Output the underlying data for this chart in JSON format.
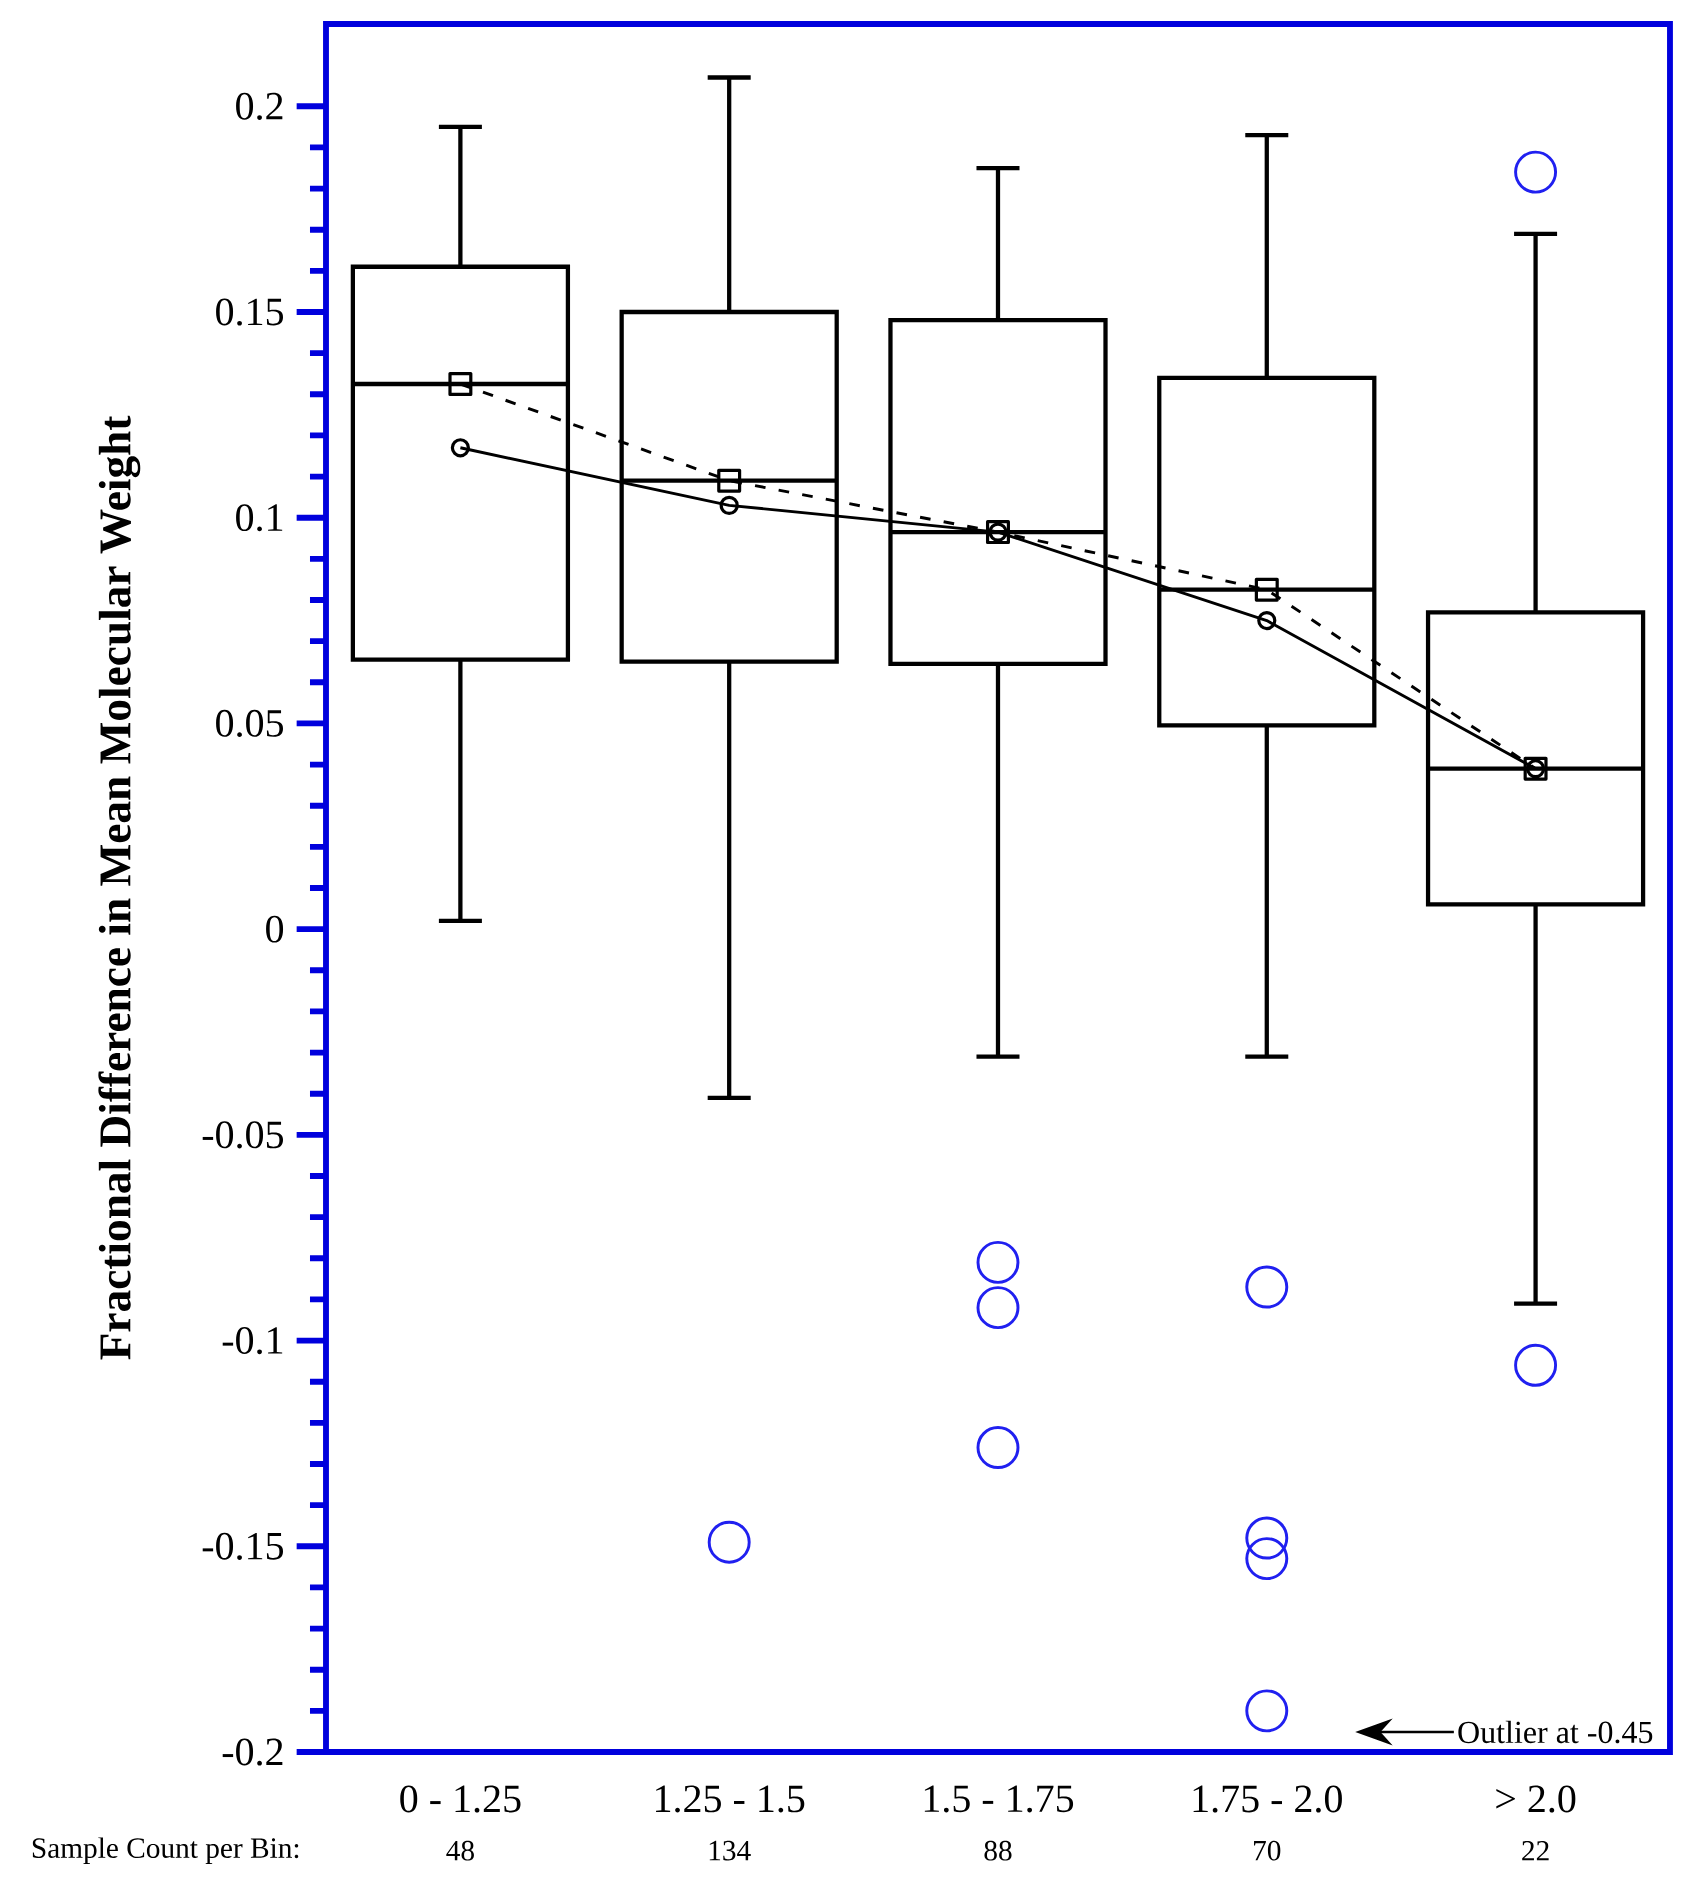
{
  "chart_data": {
    "type": "box",
    "ylabel": "Fractional Difference in Mean Molecular Weight",
    "categories": [
      "0 - 1.25",
      "1.25 - 1.5",
      "1.5 - 1.75",
      "1.75  - 2.0",
      "> 2.0"
    ],
    "boxes": [
      {
        "low": 0.002,
        "q1": 0.0655,
        "median": 0.1325,
        "q3": 0.161,
        "high": 0.195
      },
      {
        "low": -0.041,
        "q1": 0.065,
        "median": 0.109,
        "q3": 0.15,
        "high": 0.207,
        "outliers": [
          -0.149
        ]
      },
      {
        "low": -0.031,
        "q1": 0.0645,
        "median": 0.0965,
        "q3": 0.148,
        "high": 0.185,
        "outliers": [
          -0.081,
          -0.092,
          -0.126
        ]
      },
      {
        "low": -0.031,
        "q1": 0.0495,
        "median": 0.0825,
        "q3": 0.134,
        "high": 0.193,
        "outliers": [
          -0.087,
          -0.148,
          -0.153,
          -0.19
        ]
      },
      {
        "low": -0.091,
        "q1": 0.006,
        "median": 0.039,
        "q3": 0.077,
        "high": 0.169,
        "outliers": [
          0.184,
          -0.106
        ]
      }
    ],
    "series": [
      {
        "type": "line",
        "color": "#000000",
        "marker": "square",
        "line_style": "dashed",
        "values": [
          0.1325,
          0.109,
          0.0965,
          0.0825,
          0.039
        ]
      },
      {
        "type": "line",
        "color": "#000000",
        "marker": "circle",
        "line_style": "solid",
        "values": [
          0.117,
          0.103,
          0.0965,
          0.075,
          0.039
        ]
      }
    ],
    "ylim": [
      -0.2,
      0.22
    ],
    "yticks": [
      -0.2,
      -0.15,
      -0.1,
      -0.05,
      0,
      0.05,
      0.1,
      0.15,
      0.2
    ],
    "annotations": [
      "Sample Count per Bin:",
      "48",
      "134",
      "88",
      "70",
      "22",
      "Outlier at -0.45"
    ]
  }
}
